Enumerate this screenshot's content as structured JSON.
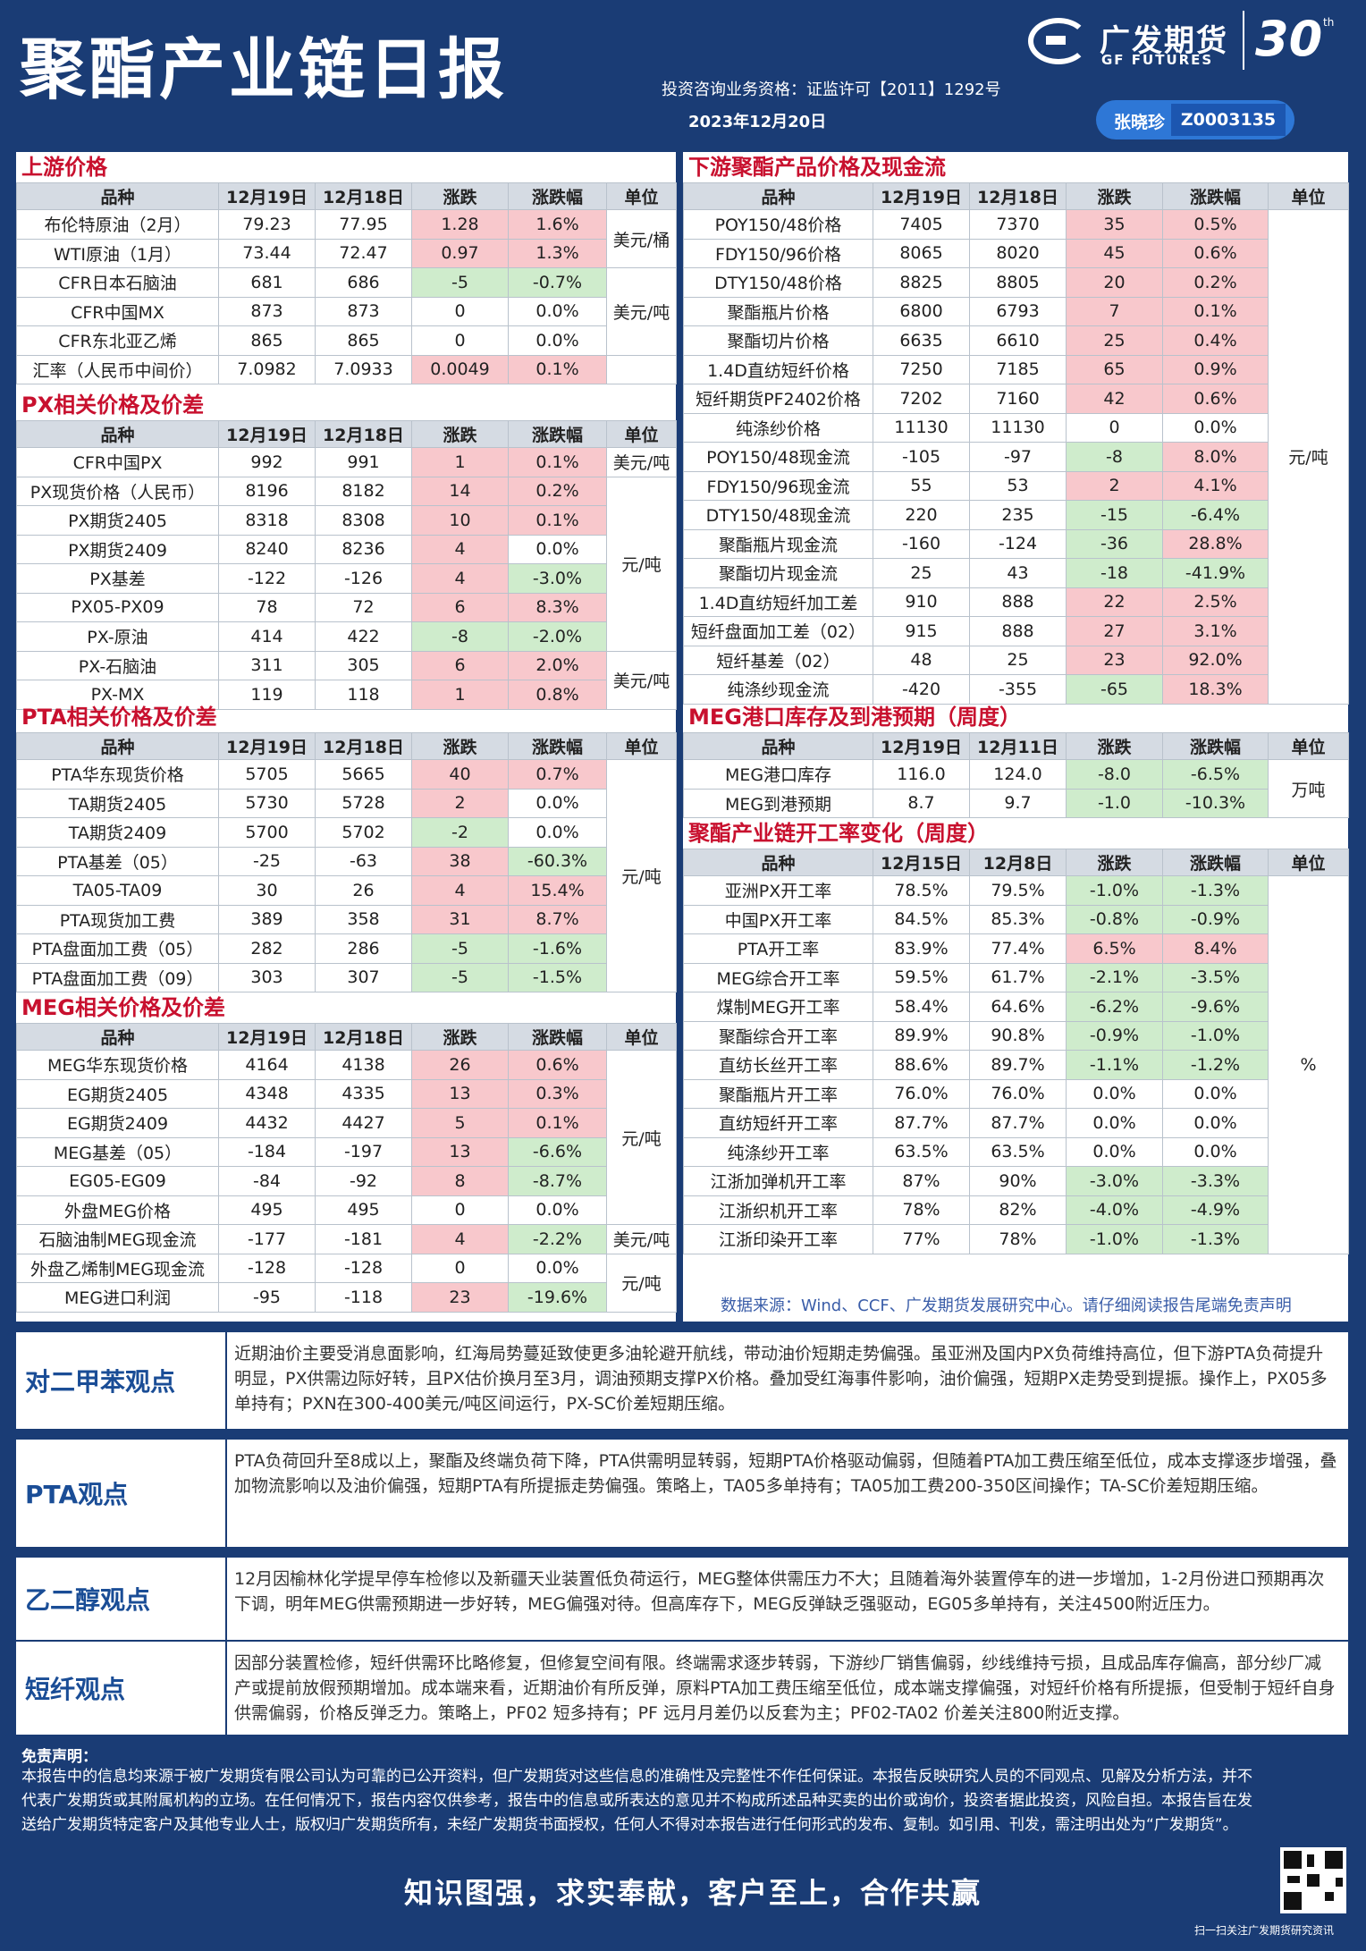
{
  "header": {
    "title": "聚酯产业链日报",
    "license": "投资咨询业务资格：证监许可【2011】1292号",
    "date": "2023年12月20日",
    "logo_cn": "广发期货",
    "logo_en": "GF FUTURES",
    "anniv": "30",
    "anniv_sup": "th",
    "author_name": "张晓珍",
    "author_id": "Z0003135"
  },
  "sections": {
    "upstream": {
      "title": "上游价格",
      "headers": [
        "品种",
        "12月19日",
        "12月18日",
        "涨跌",
        "涨跌幅",
        "单位"
      ],
      "rows": [
        [
          "布伦特原油（2月）",
          "79.23",
          "77.95",
          "1.28",
          "1.6%"
        ],
        [
          "WTI原油（1月）",
          "73.44",
          "72.47",
          "0.97",
          "1.3%"
        ],
        [
          "CFR日本石脑油",
          "681",
          "686",
          "-5",
          "-0.7%"
        ],
        [
          "CFR中国MX",
          "873",
          "873",
          "0",
          "0.0%"
        ],
        [
          "CFR东北亚乙烯",
          "865",
          "865",
          "0",
          "0.0%"
        ],
        [
          "汇率（人民币中间价）",
          "7.0982",
          "7.0933",
          "0.0049",
          "0.1%"
        ]
      ],
      "units": [
        "美元/桶",
        "美元/吨"
      ]
    },
    "px": {
      "title": "PX相关价格及价差",
      "headers": [
        "品种",
        "12月19日",
        "12月18日",
        "涨跌",
        "涨跌幅",
        "单位"
      ],
      "rows": [
        [
          "CFR中国PX",
          "992",
          "991",
          "1",
          "0.1%"
        ],
        [
          "PX现货价格（人民币）",
          "8196",
          "8182",
          "14",
          "0.2%"
        ],
        [
          "PX期货2405",
          "8318",
          "8308",
          "10",
          "0.1%"
        ],
        [
          "PX期货2409",
          "8240",
          "8236",
          "4",
          "0.0%"
        ],
        [
          "PX基差",
          "-122",
          "-126",
          "4",
          "-3.0%"
        ],
        [
          "PX05-PX09",
          "78",
          "72",
          "6",
          "8.3%"
        ],
        [
          "PX-原油",
          "414",
          "422",
          "-8",
          "-2.0%"
        ],
        [
          "PX-石脑油",
          "311",
          "305",
          "6",
          "2.0%"
        ],
        [
          "PX-MX",
          "119",
          "118",
          "1",
          "0.8%"
        ]
      ],
      "units": [
        "美元/吨",
        "元/吨",
        "美元/吨"
      ]
    },
    "pta": {
      "title": "PTA相关价格及价差",
      "headers": [
        "品种",
        "12月19日",
        "12月18日",
        "涨跌",
        "涨跌幅",
        "单位"
      ],
      "rows": [
        [
          "PTA华东现货价格",
          "5705",
          "5665",
          "40",
          "0.7%"
        ],
        [
          "TA期货2405",
          "5730",
          "5728",
          "2",
          "0.0%"
        ],
        [
          "TA期货2409",
          "5700",
          "5702",
          "-2",
          "0.0%"
        ],
        [
          "PTA基差（05）",
          "-25",
          "-63",
          "38",
          "-60.3%"
        ],
        [
          "TA05-TA09",
          "30",
          "26",
          "4",
          "15.4%"
        ],
        [
          "PTA现货加工费",
          "389",
          "358",
          "31",
          "8.7%"
        ],
        [
          "PTA盘面加工费（05）",
          "282",
          "286",
          "-5",
          "-1.6%"
        ],
        [
          "PTA盘面加工费（09）",
          "303",
          "307",
          "-5",
          "-1.5%"
        ]
      ],
      "units": [
        "元/吨"
      ]
    },
    "meg": {
      "title": "MEG相关价格及价差",
      "headers": [
        "品种",
        "12月19日",
        "12月18日",
        "涨跌",
        "涨跌幅",
        "单位"
      ],
      "rows": [
        [
          "MEG华东现货价格",
          "4164",
          "4138",
          "26",
          "0.6%"
        ],
        [
          "EG期货2405",
          "4348",
          "4335",
          "13",
          "0.3%"
        ],
        [
          "EG期货2409",
          "4432",
          "4427",
          "5",
          "0.1%"
        ],
        [
          "MEG基差（05）",
          "-184",
          "-197",
          "13",
          "-6.6%"
        ],
        [
          "EG05-EG09",
          "-84",
          "-92",
          "8",
          "-8.7%"
        ],
        [
          "外盘MEG价格",
          "495",
          "495",
          "0",
          "0.0%"
        ],
        [
          "石脑油制MEG现金流",
          "-177",
          "-181",
          "4",
          "-2.2%"
        ],
        [
          "外盘乙烯制MEG现金流",
          "-128",
          "-128",
          "0",
          "0.0%"
        ],
        [
          "MEG进口利润",
          "-95",
          "-118",
          "23",
          "-19.6%"
        ]
      ],
      "units": [
        "元/吨",
        "美元/吨",
        "元/吨"
      ]
    },
    "downstream": {
      "title": "下游聚酯产品价格及现金流",
      "headers": [
        "品种",
        "12月19日",
        "12月18日",
        "涨跌",
        "涨跌幅",
        "单位"
      ],
      "rows": [
        [
          "POY150/48价格",
          "7405",
          "7370",
          "35",
          "0.5%"
        ],
        [
          "FDY150/96价格",
          "8065",
          "8020",
          "45",
          "0.6%"
        ],
        [
          "DTY150/48价格",
          "8825",
          "8805",
          "20",
          "0.2%"
        ],
        [
          "聚酯瓶片价格",
          "6800",
          "6793",
          "7",
          "0.1%"
        ],
        [
          "聚酯切片价格",
          "6635",
          "6610",
          "25",
          "0.4%"
        ],
        [
          "1.4D直纺短纤价格",
          "7250",
          "7185",
          "65",
          "0.9%"
        ],
        [
          "短纤期货PF2402价格",
          "7202",
          "7160",
          "42",
          "0.6%"
        ],
        [
          "纯涤纱价格",
          "11130",
          "11130",
          "0",
          "0.0%"
        ],
        [
          "POY150/48现金流",
          "-105",
          "-97",
          "-8",
          "8.0%"
        ],
        [
          "FDY150/96现金流",
          "55",
          "53",
          "2",
          "4.1%"
        ],
        [
          "DTY150/48现金流",
          "220",
          "235",
          "-15",
          "-6.4%"
        ],
        [
          "聚酯瓶片现金流",
          "-160",
          "-124",
          "-36",
          "28.8%"
        ],
        [
          "聚酯切片现金流",
          "25",
          "43",
          "-18",
          "-41.9%"
        ],
        [
          "1.4D直纺短纤加工差",
          "910",
          "888",
          "22",
          "2.5%"
        ],
        [
          "短纤盘面加工差（02）",
          "915",
          "888",
          "27",
          "3.1%"
        ],
        [
          "短纤基差（02）",
          "48",
          "25",
          "23",
          "92.0%"
        ],
        [
          "纯涤纱现金流",
          "-420",
          "-355",
          "-65",
          "18.3%"
        ]
      ],
      "units": [
        "元/吨"
      ]
    },
    "megport": {
      "title": "MEG港口库存及到港预期（周度）",
      "headers": [
        "品种",
        "12月19日",
        "12月11日",
        "涨跌",
        "涨跌幅",
        "单位"
      ],
      "rows": [
        [
          "MEG港口库存",
          "116.0",
          "124.0",
          "-8.0",
          "-6.5%"
        ],
        [
          "MEG到港预期",
          "8.7",
          "9.7",
          "-1.0",
          "-10.3%"
        ]
      ],
      "units": [
        "万吨"
      ]
    },
    "oprate": {
      "title": "聚酯产业链开工率变化（周度）",
      "headers": [
        "品种",
        "12月15日",
        "12月8日",
        "涨跌",
        "涨跌幅",
        "单位"
      ],
      "rows": [
        [
          "亚洲PX开工率",
          "78.5%",
          "79.5%",
          "-1.0%",
          "-1.3%"
        ],
        [
          "中国PX开工率",
          "84.5%",
          "85.3%",
          "-0.8%",
          "-0.9%"
        ],
        [
          "PTA开工率",
          "83.9%",
          "77.4%",
          "6.5%",
          "8.4%"
        ],
        [
          "MEG综合开工率",
          "59.5%",
          "61.7%",
          "-2.1%",
          "-3.5%"
        ],
        [
          "煤制MEG开工率",
          "58.4%",
          "64.6%",
          "-6.2%",
          "-9.6%"
        ],
        [
          "聚酯综合开工率",
          "89.9%",
          "90.8%",
          "-0.9%",
          "-1.0%"
        ],
        [
          "直纺长丝开工率",
          "88.6%",
          "89.7%",
          "-1.1%",
          "-1.2%"
        ],
        [
          "聚酯瓶片开工率",
          "76.0%",
          "76.0%",
          "0.0%",
          "0.0%"
        ],
        [
          "直纺短纤开工率",
          "87.7%",
          "87.7%",
          "0.0%",
          "0.0%"
        ],
        [
          "纯涤纱开工率",
          "63.5%",
          "63.5%",
          "0.0%",
          "0.0%"
        ],
        [
          "江浙加弹机开工率",
          "87%",
          "90%",
          "-3.0%",
          "-3.3%"
        ],
        [
          "江浙织机开工率",
          "78%",
          "82%",
          "-4.0%",
          "-4.9%"
        ],
        [
          "江浙印染开工率",
          "77%",
          "78%",
          "-1.0%",
          "-1.3%"
        ]
      ],
      "units": [
        "%"
      ]
    }
  },
  "source": "数据来源：Wind、CCF、广发期货发展研究中心。请仔细阅读报告尾端免责声明",
  "views": [
    {
      "label": "对二甲苯观点",
      "text": "近期油价主要受消息面影响，红海局势蔓延致使更多油轮避开航线，带动油价短期走势偏强。虽亚洲及国内PX负荷维持高位，但下游PTA负荷提升明显，PX供需边际好转，且PX估价换月至3月，调油预期支撑PX价格。叠加受红海事件影响，油价偏强，短期PX走势受到提振。操作上，PX05多单持有；PXN在300-400美元/吨区间运行，PX-SC价差短期压缩。"
    },
    {
      "label": "PTA观点",
      "text": "PTA负荷回升至8成以上，聚酯及终端负荷下降，PTA供需明显转弱，短期PTA价格驱动偏弱，但随着PTA加工费压缩至低位，成本支撑逐步增强，叠加物流影响以及油价偏强，短期PTA有所提振走势偏强。策略上，TA05多单持有；TA05加工费200-350区间操作；TA-SC价差短期压缩。"
    },
    {
      "label": "乙二醇观点",
      "text": "12月因榆林化学提早停车检修以及新疆天业装置低负荷运行，MEG整体供需压力不大；且随着海外装置停车的进一步增加，1-2月份进口预期再次下调，明年MEG供需预期进一步好转，MEG偏强对待。但高库存下，MEG反弹缺乏强驱动，EG05多单持有，关注4500附近压力。"
    },
    {
      "label": "短纤观点",
      "text": "因部分装置检修，短纤供需环比略修复，但修复空间有限。终端需求逐步转弱，下游纱厂销售偏弱，纱线维持亏损，且成品库存偏高，部分纱厂减产或提前放假预期增加。成本端来看，近期油价有所反弹，原料PTA加工费压缩至低位，成本端支撑偏强，对短纤价格有所提振，但受制于短纤自身供需偏弱，价格反弹乏力。策略上，PF02 短多持有；PF 远月月差仍以反套为主；PF02-TA02 价差关注800附近支撑。"
    }
  ],
  "disclaimer": {
    "title": "免责声明：",
    "text": "本报告中的信息均来源于被广发期货有限公司认为可靠的已公开资料，但广发期货对这些信息的准确性及完整性不作任何保证。本报告反映研究人员的不同观点、见解及分析方法，并不代表广发期货或其附属机构的立场。在任何情况下，报告内容仅供参考，报告中的信息或所表达的意见并不构成所述品种买卖的出价或询价，投资者据此投资，风险自担。本报告旨在发送给广发期货特定客户及其他专业人士，版权归广发期货所有，未经广发期货书面授权，任何人不得对本报告进行任何形式的发布、复制。如引用、刊发，需注明出处为“广发期货”。"
  },
  "slogan": "知识图强，求实奉献，客户至上，合作共赢",
  "qr_caption": "扫一扫关注广发期货研究资讯",
  "colors": {
    "background": "#1a3c75",
    "negative": "#cfeccc",
    "positive": "#f8c8cc",
    "section_title": "#c8102e"
  }
}
